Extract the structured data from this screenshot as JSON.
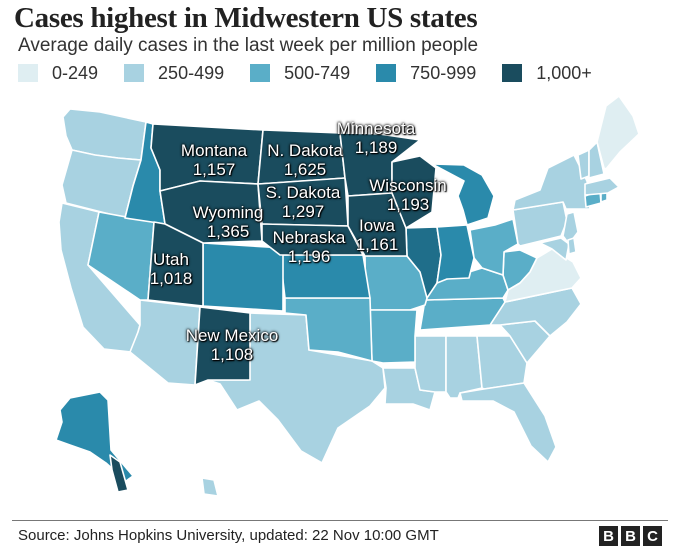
{
  "header": {
    "title": "Cases highest in Midwestern US states",
    "subtitle": "Average daily cases in the last week per million people"
  },
  "legend": [
    {
      "label": "0-249",
      "color": "#dfeef2"
    },
    {
      "label": "250-499",
      "color": "#a8d2e1"
    },
    {
      "label": "500-749",
      "color": "#5aaec8"
    },
    {
      "label": "750-999",
      "color": "#2a8aab"
    },
    {
      "label": "1,000+",
      "color": "#1a4c5e"
    }
  ],
  "map": {
    "labels": [
      {
        "state": "Minnesota",
        "value": ""
      },
      {
        "state": "Montana",
        "value": "1,157"
      },
      {
        "state": "N. Dakota",
        "value": "1,625"
      },
      {
        "state": "",
        "value": "1,189"
      },
      {
        "state": "S. Dakota",
        "value": "1,297"
      },
      {
        "state": "Wisconsin",
        "value": "1,193"
      },
      {
        "state": "Wyoming",
        "value": "1,365"
      },
      {
        "state": "Iowa",
        "value": "1,161"
      },
      {
        "state": "Nebraska",
        "value": "1,196"
      },
      {
        "state": "Utah",
        "value": "1,018"
      },
      {
        "state": "New Mexico",
        "value": "1,108"
      }
    ]
  },
  "footer": {
    "source": "Source: Johns Hopkins University, updated: 22 Nov 10:00 GMT",
    "logo_letters": [
      "B",
      "B",
      "C"
    ]
  }
}
